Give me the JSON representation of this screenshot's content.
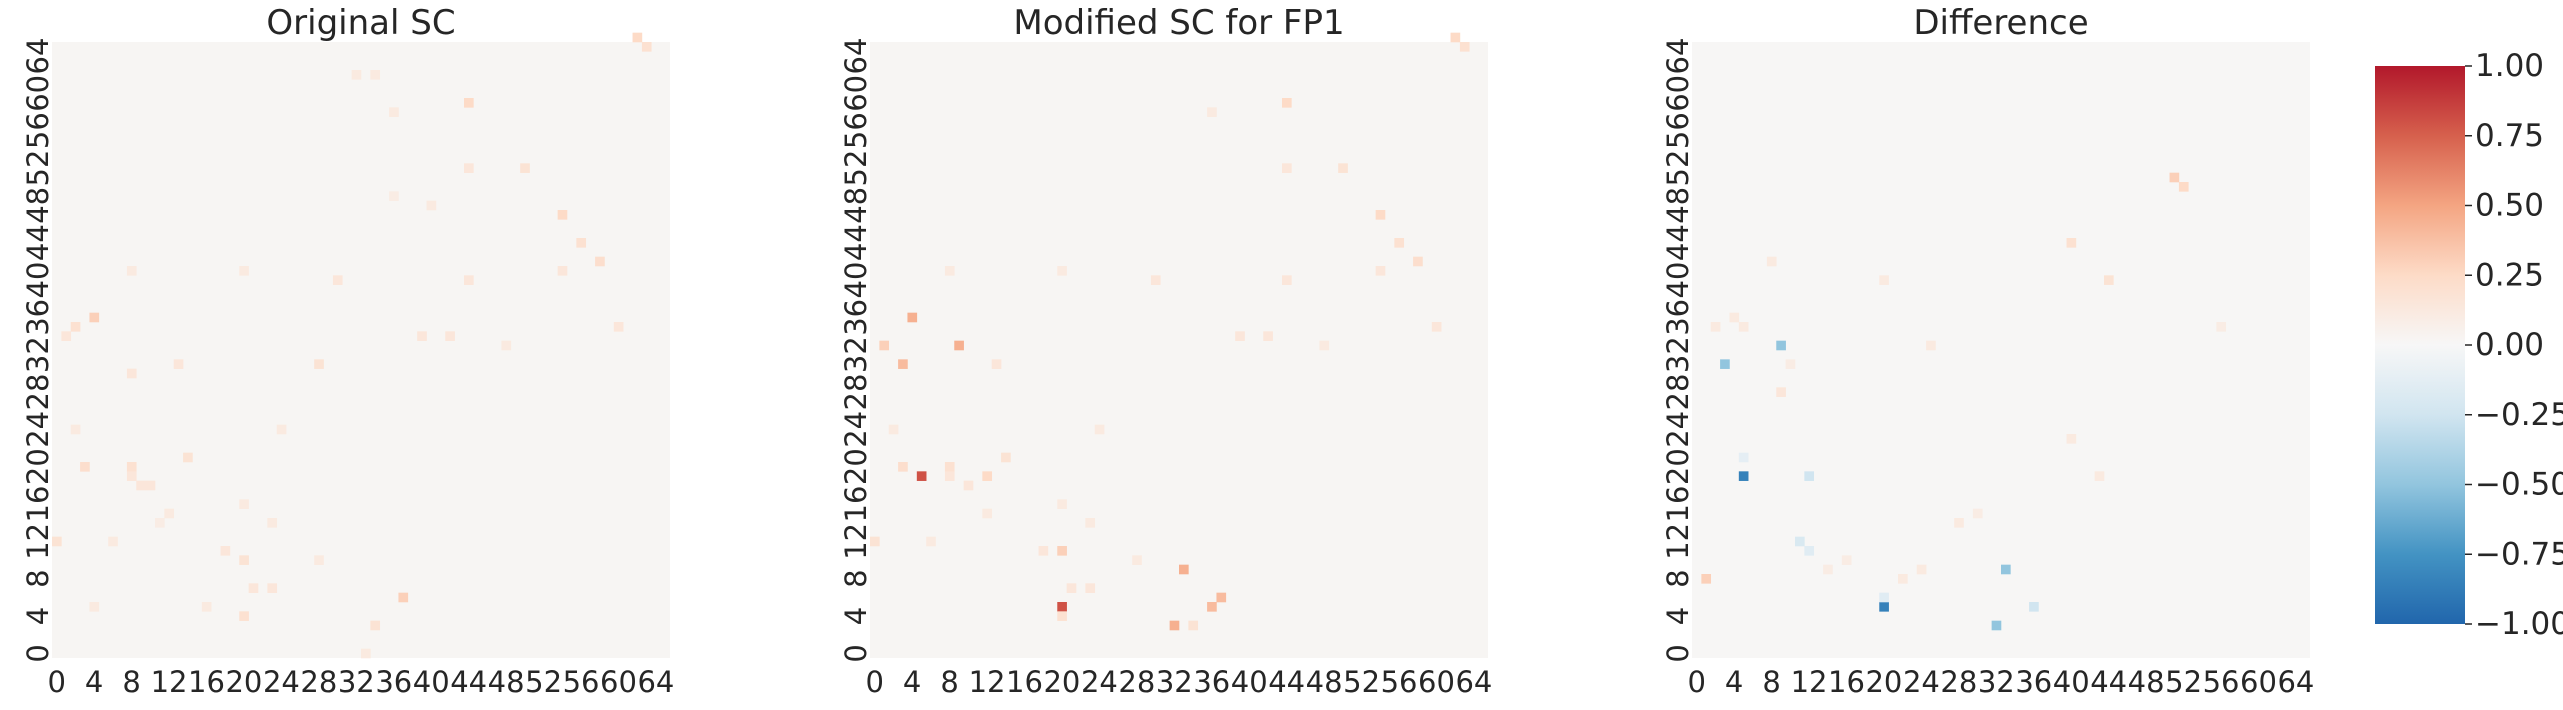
{
  "chart_data": [
    {
      "type": "heatmap",
      "title": "Original SC",
      "grid_size": 66,
      "xticks": [
        0,
        4,
        8,
        12,
        16,
        20,
        24,
        28,
        32,
        36,
        40,
        44,
        48,
        52,
        56,
        60,
        64
      ],
      "yticks": [
        0,
        4,
        8,
        12,
        16,
        20,
        24,
        28,
        32,
        36,
        40,
        44,
        48,
        52,
        56,
        60,
        64
      ],
      "vlim": [
        -1,
        1
      ],
      "background_value": 0.02,
      "cells": [
        [
          4,
          36,
          0.3
        ],
        [
          2,
          35,
          0.2
        ],
        [
          1,
          34,
          0.15
        ],
        [
          8,
          30,
          0.15
        ],
        [
          28,
          31,
          0.18
        ],
        [
          8,
          20,
          0.2
        ],
        [
          8,
          19,
          0.15
        ],
        [
          9,
          18,
          0.15
        ],
        [
          14,
          21,
          0.18
        ],
        [
          3,
          20,
          0.22
        ],
        [
          10,
          18,
          0.15
        ],
        [
          20,
          10,
          0.18
        ],
        [
          20,
          4,
          0.2
        ],
        [
          20,
          16,
          0.12
        ],
        [
          33,
          0,
          0.12
        ],
        [
          18,
          11,
          0.15
        ],
        [
          21,
          7,
          0.15
        ],
        [
          23,
          7,
          0.15
        ],
        [
          34,
          3,
          0.18
        ],
        [
          37,
          6,
          0.3
        ],
        [
          32,
          62,
          0.12
        ],
        [
          34,
          62,
          0.12
        ],
        [
          44,
          59,
          0.25
        ],
        [
          44,
          52,
          0.15
        ],
        [
          50,
          52,
          0.18
        ],
        [
          54,
          47,
          0.25
        ],
        [
          54,
          41,
          0.15
        ],
        [
          56,
          44,
          0.2
        ],
        [
          58,
          42,
          0.22
        ],
        [
          62,
          66,
          0.25
        ],
        [
          63,
          65,
          0.2
        ],
        [
          36,
          58,
          0.12
        ],
        [
          44,
          40,
          0.15
        ],
        [
          39,
          34,
          0.15
        ],
        [
          30,
          40,
          0.15
        ],
        [
          8,
          41,
          0.12
        ],
        [
          20,
          41,
          0.12
        ],
        [
          13,
          31,
          0.15
        ],
        [
          0,
          12,
          0.18
        ],
        [
          6,
          12,
          0.12
        ],
        [
          23,
          14,
          0.12
        ],
        [
          2,
          24,
          0.12
        ],
        [
          11,
          14,
          0.1
        ],
        [
          60,
          35,
          0.15
        ],
        [
          48,
          33,
          0.12
        ],
        [
          36,
          49,
          0.1
        ],
        [
          40,
          48,
          0.12
        ],
        [
          42,
          34,
          0.15
        ],
        [
          12,
          15,
          0.12
        ],
        [
          4,
          5,
          0.12
        ],
        [
          16,
          5,
          0.12
        ],
        [
          24,
          24,
          0.12
        ],
        [
          28,
          10,
          0.12
        ]
      ]
    },
    {
      "type": "heatmap",
      "title": "Modified SC for FP1",
      "grid_size": 66,
      "xticks": [
        0,
        4,
        8,
        12,
        16,
        20,
        24,
        28,
        32,
        36,
        40,
        44,
        48,
        52,
        56,
        60,
        64
      ],
      "yticks": [
        0,
        4,
        8,
        12,
        16,
        20,
        24,
        28,
        32,
        36,
        40,
        44,
        48,
        52,
        56,
        60,
        64
      ],
      "vlim": [
        -1,
        1
      ],
      "background_value": 0.02,
      "cells": [
        [
          5,
          19,
          0.8
        ],
        [
          4,
          36,
          0.45
        ],
        [
          9,
          33,
          0.45
        ],
        [
          3,
          31,
          0.4
        ],
        [
          20,
          5,
          0.8
        ],
        [
          32,
          3,
          0.45
        ],
        [
          36,
          5,
          0.4
        ],
        [
          33,
          9,
          0.45
        ],
        [
          37,
          6,
          0.4
        ],
        [
          20,
          11,
          0.3
        ],
        [
          1,
          33,
          0.3
        ],
        [
          12,
          19,
          0.25
        ],
        [
          8,
          20,
          0.2
        ],
        [
          8,
          19,
          0.15
        ],
        [
          14,
          21,
          0.18
        ],
        [
          3,
          20,
          0.22
        ],
        [
          10,
          18,
          0.15
        ],
        [
          20,
          4,
          0.2
        ],
        [
          20,
          16,
          0.12
        ],
        [
          18,
          11,
          0.15
        ],
        [
          21,
          7,
          0.15
        ],
        [
          23,
          7,
          0.15
        ],
        [
          34,
          3,
          0.18
        ],
        [
          44,
          59,
          0.25
        ],
        [
          44,
          52,
          0.15
        ],
        [
          50,
          52,
          0.18
        ],
        [
          54,
          47,
          0.25
        ],
        [
          54,
          41,
          0.15
        ],
        [
          56,
          44,
          0.2
        ],
        [
          58,
          42,
          0.22
        ],
        [
          62,
          66,
          0.25
        ],
        [
          63,
          65,
          0.2
        ],
        [
          36,
          58,
          0.12
        ],
        [
          44,
          40,
          0.15
        ],
        [
          39,
          34,
          0.15
        ],
        [
          30,
          40,
          0.15
        ],
        [
          8,
          41,
          0.12
        ],
        [
          20,
          41,
          0.12
        ],
        [
          13,
          31,
          0.15
        ],
        [
          0,
          12,
          0.18
        ],
        [
          6,
          12,
          0.12
        ],
        [
          23,
          14,
          0.12
        ],
        [
          2,
          24,
          0.12
        ],
        [
          60,
          35,
          0.15
        ],
        [
          48,
          33,
          0.12
        ],
        [
          42,
          34,
          0.15
        ],
        [
          12,
          15,
          0.12
        ],
        [
          24,
          24,
          0.12
        ],
        [
          28,
          10,
          0.12
        ]
      ]
    },
    {
      "type": "heatmap",
      "title": "Difference",
      "grid_size": 66,
      "xticks": [
        0,
        4,
        8,
        12,
        16,
        20,
        24,
        28,
        32,
        36,
        40,
        44,
        48,
        52,
        56,
        60,
        64
      ],
      "yticks": [
        0,
        4,
        8,
        12,
        16,
        20,
        24,
        28,
        32,
        36,
        40,
        44,
        48,
        52,
        56,
        60,
        64
      ],
      "vlim": [
        -1,
        1
      ],
      "background_value": 0.01,
      "cells": [
        [
          5,
          19,
          -0.85
        ],
        [
          3,
          31,
          -0.5
        ],
        [
          9,
          33,
          -0.5
        ],
        [
          20,
          5,
          -0.85
        ],
        [
          32,
          3,
          -0.5
        ],
        [
          33,
          9,
          -0.5
        ],
        [
          36,
          5,
          -0.25
        ],
        [
          12,
          19,
          -0.25
        ],
        [
          11,
          12,
          -0.2
        ],
        [
          12,
          11,
          -0.15
        ],
        [
          20,
          6,
          -0.15
        ],
        [
          5,
          21,
          -0.12
        ],
        [
          1,
          8,
          0.3
        ],
        [
          4,
          36,
          0.12
        ],
        [
          9,
          28,
          0.15
        ],
        [
          51,
          51,
          0.3
        ],
        [
          52,
          50,
          0.25
        ],
        [
          40,
          44,
          0.2
        ],
        [
          44,
          40,
          0.18
        ],
        [
          2,
          35,
          0.12
        ],
        [
          25,
          33,
          0.12
        ],
        [
          10,
          31,
          0.1
        ],
        [
          40,
          23,
          0.12
        ],
        [
          20,
          40,
          0.12
        ],
        [
          28,
          14,
          0.12
        ],
        [
          5,
          35,
          0.12
        ],
        [
          56,
          35,
          0.1
        ],
        [
          8,
          42,
          0.12
        ],
        [
          43,
          19,
          0.12
        ],
        [
          14,
          9,
          0.1
        ],
        [
          30,
          15,
          0.1
        ],
        [
          22,
          8,
          0.12
        ],
        [
          24,
          9,
          0.12
        ],
        [
          16,
          10,
          0.1
        ]
      ]
    }
  ],
  "colorbar": {
    "min": -1,
    "max": 1,
    "ticks": [
      "1.00",
      "0.75",
      "0.50",
      "0.25",
      "0.00",
      "−0.25",
      "−0.50",
      "−0.75",
      "−1.00"
    ],
    "colors": [
      "#b2182b",
      "#d6604d",
      "#f4a582",
      "#fddbc7",
      "#f7f7f7",
      "#d1e5f0",
      "#92c5de",
      "#4393c3",
      "#2166ac"
    ]
  }
}
